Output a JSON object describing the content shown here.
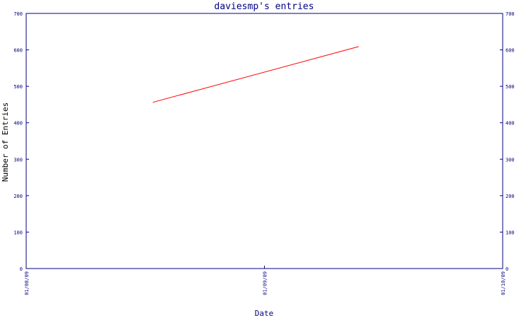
{
  "chart_data": {
    "type": "line",
    "title": "daviesmp's entries",
    "xlabel": "Date",
    "ylabel": "Number of Entries",
    "x_ticks": [
      "01/08/09",
      "01/09/09",
      "01/10/09"
    ],
    "y_ticks": [
      0,
      100,
      200,
      300,
      400,
      500,
      600,
      700
    ],
    "ylim": [
      0,
      700
    ],
    "xlim": [
      "01/08/09",
      "01/10/09"
    ],
    "secondary_y_axis": true,
    "grid": false,
    "series": [
      {
        "color": "#ff0000",
        "x": [
          "01/08/09 12:45",
          "01/09/09 09:30"
        ],
        "y": [
          456,
          609
        ]
      }
    ],
    "colors": {
      "axis": "#000080",
      "line": "#ff0000",
      "background": "#ffffff"
    }
  }
}
